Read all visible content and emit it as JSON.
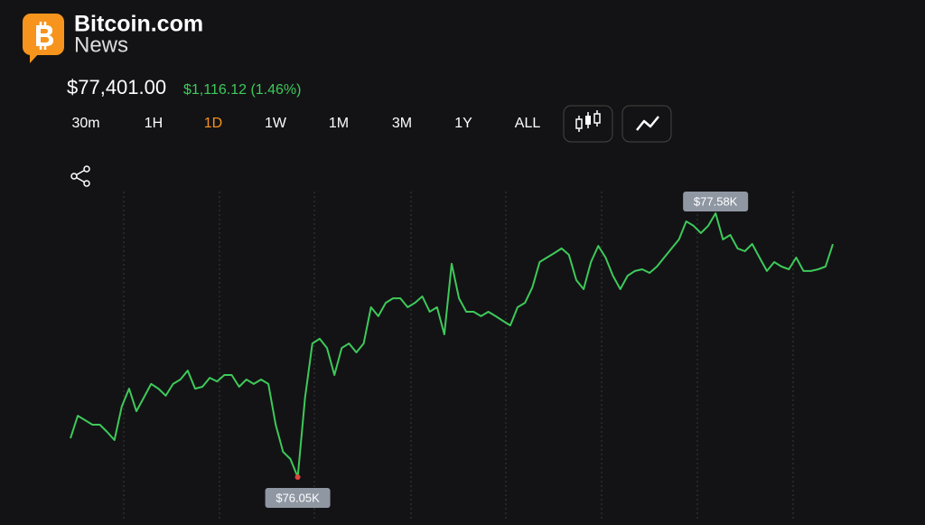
{
  "header": {
    "brand": "Bitcoin.com",
    "sub": "News"
  },
  "price": {
    "current": "$77,401.00",
    "change": "$1,116.12 (1.46%)"
  },
  "timeframes": [
    {
      "label": "30m",
      "selected": false
    },
    {
      "label": "1H",
      "selected": false
    },
    {
      "label": "1D",
      "selected": true
    },
    {
      "label": "1W",
      "selected": false
    },
    {
      "label": "1M",
      "selected": false
    },
    {
      "label": "3M",
      "selected": false
    },
    {
      "label": "1Y",
      "selected": false
    },
    {
      "label": "ALL",
      "selected": false
    }
  ],
  "chart_data": {
    "type": "line",
    "color": "#3ec95a",
    "values": [
      76275,
      76406,
      76380,
      76354,
      76354,
      76312,
      76265,
      76459,
      76563,
      76432,
      76511,
      76590,
      76563,
      76522,
      76590,
      76616,
      76668,
      76563,
      76574,
      76626,
      76605,
      76642,
      76642,
      76574,
      76616,
      76590,
      76616,
      76590,
      76354,
      76197,
      76155,
      76050,
      76511,
      76825,
      76852,
      76799,
      76642,
      76799,
      76825,
      76773,
      76825,
      77035,
      76983,
      77061,
      77087,
      77087,
      77035,
      77061,
      77098,
      77009,
      77035,
      76878,
      77287,
      77087,
      77009,
      77009,
      76983,
      77009,
      76983,
      76956,
      76930,
      77035,
      77061,
      77150,
      77297,
      77323,
      77349,
      77376,
      77339,
      77192,
      77140,
      77297,
      77391,
      77323,
      77218,
      77140,
      77218,
      77245,
      77255,
      77234,
      77271,
      77323,
      77376,
      77428,
      77533,
      77507,
      77465,
      77507,
      77580,
      77428,
      77454,
      77376,
      77360,
      77402,
      77323,
      77245,
      77297,
      77271,
      77255,
      77323,
      77245,
      77245,
      77255,
      77271,
      77401
    ],
    "max_label": "$77.58K",
    "min_label": "$76.05K"
  }
}
